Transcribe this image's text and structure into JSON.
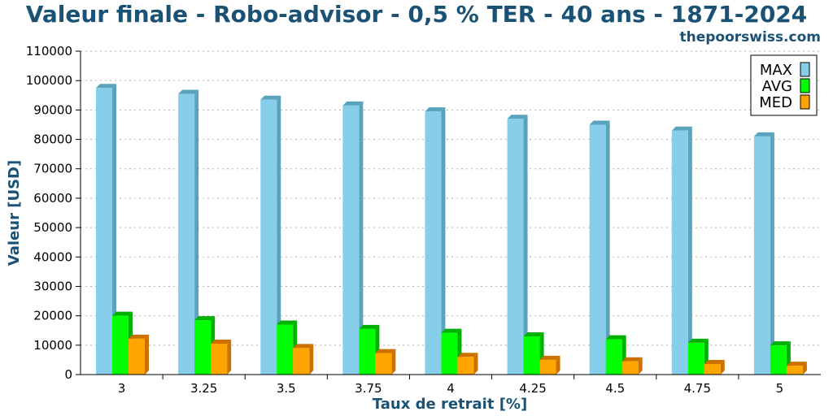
{
  "chart_data": {
    "type": "bar",
    "title": "Valeur finale - Robo-advisor - 0,5 % TER - 40 ans - 1871-2024",
    "source": "thepoorswiss.com",
    "xlabel": "Taux de retrait [%]",
    "ylabel": "Valeur [USD]",
    "ylim": [
      0,
      110000
    ],
    "yticks": [
      0,
      10000,
      20000,
      30000,
      40000,
      50000,
      60000,
      70000,
      80000,
      90000,
      100000,
      110000
    ],
    "grid": true,
    "legend_position": "top-right",
    "categories": [
      "3",
      "3.25",
      "3.5",
      "3.75",
      "4",
      "4.25",
      "4.5",
      "4.75",
      "5"
    ],
    "series": [
      {
        "name": "MAX",
        "color": "#87ceeb",
        "side": "#5aa3bd",
        "values": [
          97500,
          95500,
          93500,
          91500,
          89500,
          87000,
          85000,
          83000,
          81000
        ]
      },
      {
        "name": "AVG",
        "color": "#00ff00",
        "side": "#00b000",
        "values": [
          20000,
          18500,
          17000,
          15500,
          14200,
          13000,
          12000,
          10800,
          9900
        ]
      },
      {
        "name": "MED",
        "color": "#ffa500",
        "side": "#cc7000",
        "values": [
          12200,
          10500,
          9000,
          7300,
          6000,
          5000,
          4500,
          3600,
          3000
        ]
      }
    ]
  }
}
